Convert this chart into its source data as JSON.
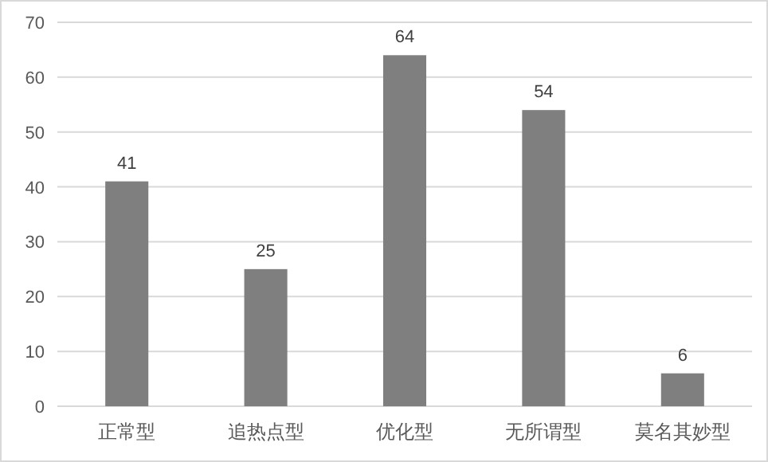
{
  "chart_data": {
    "type": "bar",
    "categories": [
      "正常型",
      "追热点型",
      "优化型",
      "无所谓型",
      "莫名其妙型"
    ],
    "values": [
      41,
      25,
      64,
      54,
      6
    ],
    "color": "#7f7f7f",
    "ylim": [
      0,
      70
    ],
    "yticks": [
      0,
      10,
      20,
      30,
      40,
      50,
      60,
      70
    ],
    "grid": "y",
    "data_labels": true
  }
}
